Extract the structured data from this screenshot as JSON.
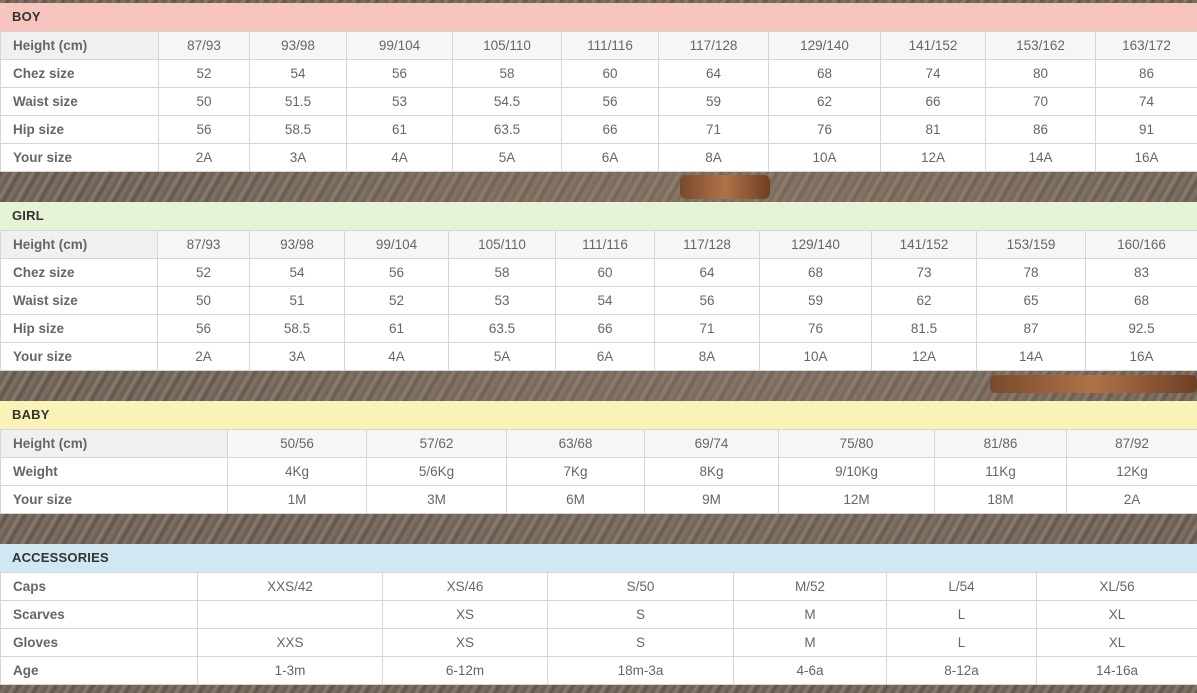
{
  "boy": {
    "title": "BOY",
    "color": "#f7c5bd",
    "rows": [
      {
        "label": "Height (cm)",
        "cells": [
          "87/93",
          "93/98",
          "99/104",
          "105/110",
          "111/116",
          "117/128",
          "129/140",
          "141/152",
          "153/162",
          "163/172"
        ]
      },
      {
        "label": "Chez size",
        "cells": [
          "52",
          "54",
          "56",
          "58",
          "60",
          "64",
          "68",
          "74",
          "80",
          "86"
        ]
      },
      {
        "label": "Waist size",
        "cells": [
          "50",
          "51.5",
          "53",
          "54.5",
          "56",
          "59",
          "62",
          "66",
          "70",
          "74"
        ]
      },
      {
        "label": "Hip size",
        "cells": [
          "56",
          "58.5",
          "61",
          "63.5",
          "66",
          "71",
          "76",
          "81",
          "86",
          "91"
        ]
      },
      {
        "label": "Your size",
        "cells": [
          "2A",
          "3A",
          "4A",
          "5A",
          "6A",
          "8A",
          "10A",
          "12A",
          "14A",
          "16A"
        ]
      }
    ]
  },
  "girl": {
    "title": "GIRL",
    "color": "#e6f3d6",
    "rows": [
      {
        "label": "Height (cm)",
        "cells": [
          "87/93",
          "93/98",
          "99/104",
          "105/110",
          "111/116",
          "117/128",
          "129/140",
          "141/152",
          "153/159",
          "160/166"
        ]
      },
      {
        "label": "Chez size",
        "cells": [
          "52",
          "54",
          "56",
          "58",
          "60",
          "64",
          "68",
          "73",
          "78",
          "83"
        ]
      },
      {
        "label": "Waist size",
        "cells": [
          "50",
          "51",
          "52",
          "53",
          "54",
          "56",
          "59",
          "62",
          "65",
          "68"
        ]
      },
      {
        "label": "Hip size",
        "cells": [
          "56",
          "58.5",
          "61",
          "63.5",
          "66",
          "71",
          "76",
          "81.5",
          "87",
          "92.5"
        ]
      },
      {
        "label": "Your size",
        "cells": [
          "2A",
          "3A",
          "4A",
          "5A",
          "6A",
          "8A",
          "10A",
          "12A",
          "14A",
          "16A"
        ]
      }
    ]
  },
  "baby": {
    "title": "BABY",
    "color": "#faf3b8",
    "rows": [
      {
        "label": "Height (cm)",
        "cells": [
          "50/56",
          "57/62",
          "63/68",
          "69/74",
          "75/80",
          "81/86",
          "87/92"
        ]
      },
      {
        "label": "Weight",
        "cells": [
          "4Kg",
          "5/6Kg",
          "7Kg",
          "8Kg",
          "9/10Kg",
          "11Kg",
          "12Kg"
        ]
      },
      {
        "label": "Your size",
        "cells": [
          "1M",
          "3M",
          "6M",
          "9M",
          "12M",
          "18M",
          "2A"
        ]
      }
    ]
  },
  "accessories": {
    "title": "ACCESSORIES",
    "color": "#cfe8f2",
    "rows": [
      {
        "label": "Caps",
        "cells": [
          "XXS/42",
          "XS/46",
          "S/50",
          "M/52",
          "L/54",
          "XL/56"
        ]
      },
      {
        "label": "Scarves",
        "cells": [
          "",
          "XS",
          "S",
          "M",
          "L",
          "XL"
        ]
      },
      {
        "label": "Gloves",
        "cells": [
          "XXS",
          "XS",
          "S",
          "M",
          "L",
          "XL"
        ]
      },
      {
        "label": "Age",
        "cells": [
          "1-3m",
          "6-12m",
          "18m-3a",
          "4-6a",
          "8-12a",
          "14-16a"
        ]
      }
    ]
  }
}
